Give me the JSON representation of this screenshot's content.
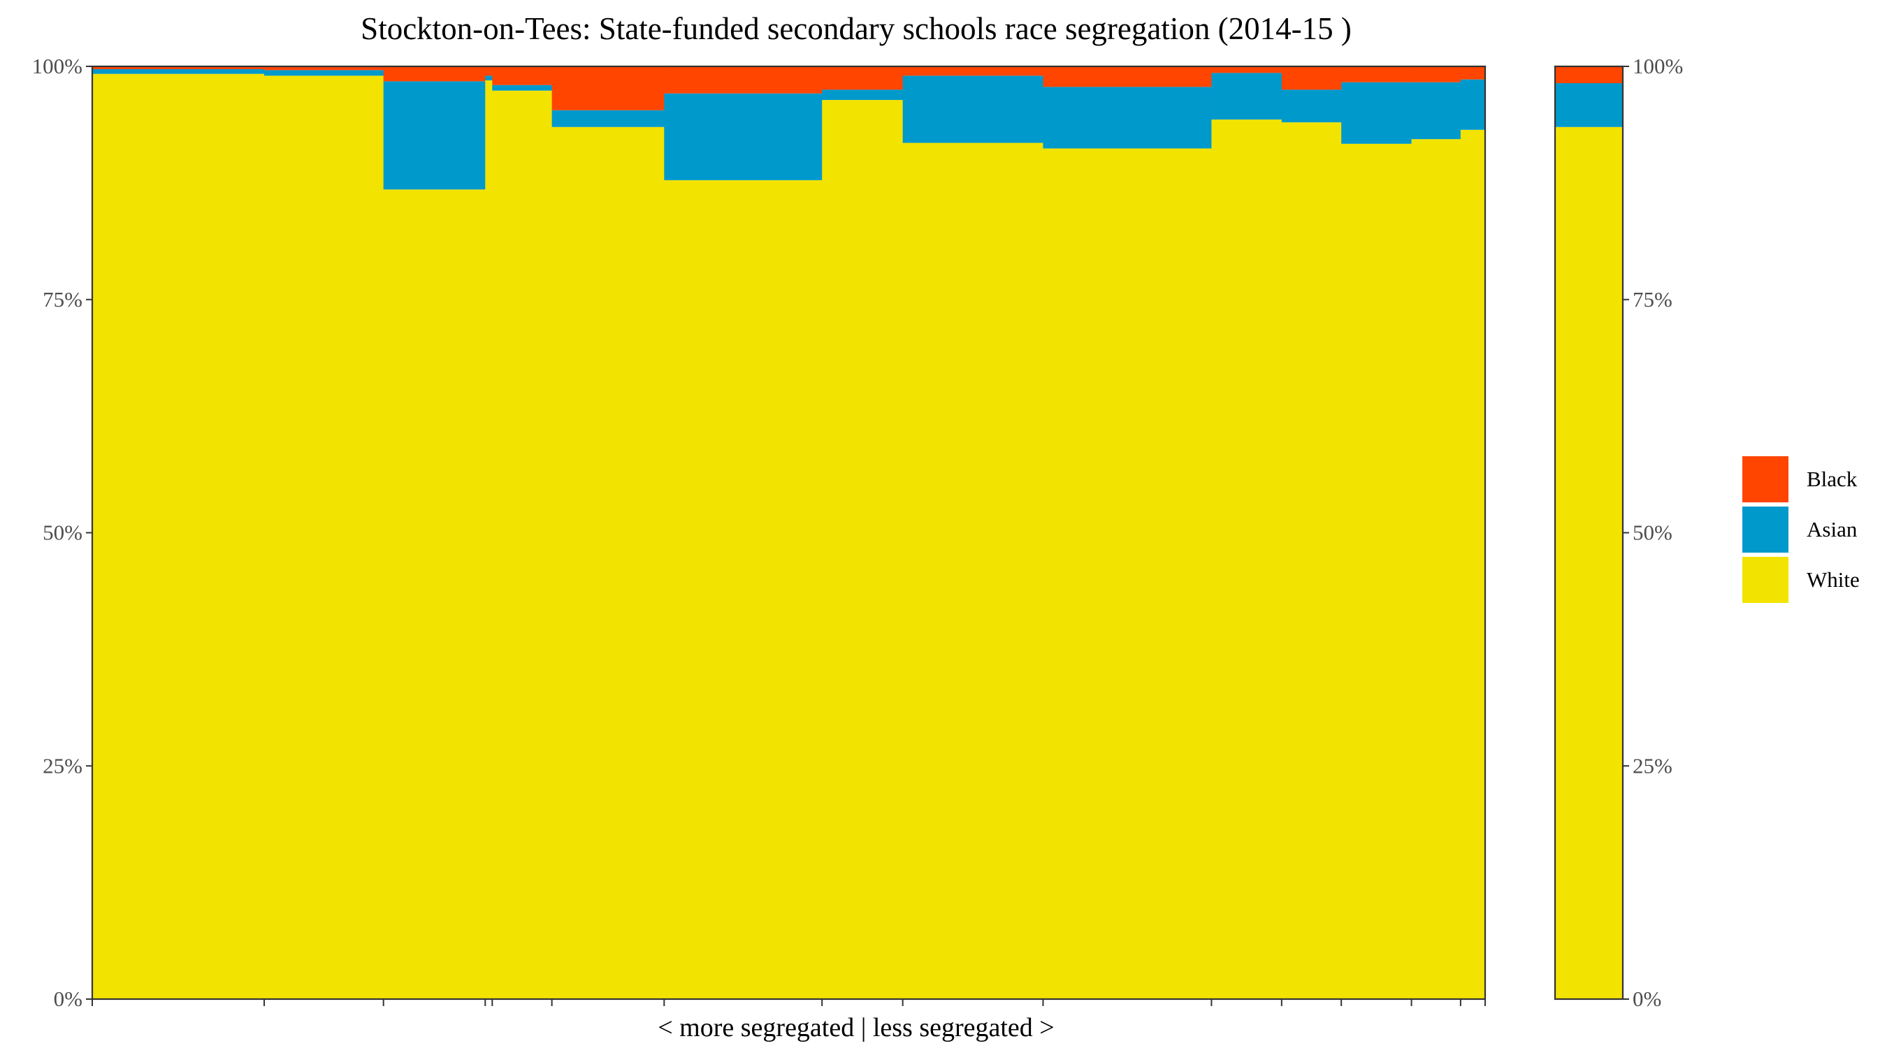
{
  "chart_data": {
    "type": "bar",
    "title": "Stockton-on-Tees: State-funded secondary schools race segregation (2014-15 )",
    "xlabel": "< more segregated | less segregated >",
    "ylabel": "",
    "ylim": [
      0,
      1
    ],
    "ytick_labels": [
      "0%",
      "25%",
      "50%",
      "75%",
      "100%"
    ],
    "ytick_values": [
      0,
      0.25,
      0.5,
      0.75,
      1
    ],
    "stack_order": [
      "White",
      "Asian",
      "Black"
    ],
    "legend": {
      "position": "right",
      "entries": [
        {
          "name": "Black",
          "color": "#FF4500"
        },
        {
          "name": "Asian",
          "color": "#0099CC"
        },
        {
          "name": "White",
          "color": "#F2E300"
        }
      ]
    },
    "bar_width_encodes": "school size (variable-width stacked bars)",
    "schools": [
      {
        "width": 2.45,
        "White": 0.992,
        "Asian": 0.005,
        "Black": 0.003
      },
      {
        "width": 1.7,
        "White": 0.99,
        "Asian": 0.006,
        "Black": 0.004
      },
      {
        "width": 1.45,
        "White": 0.868,
        "Asian": 0.116,
        "Black": 0.016
      },
      {
        "width": 0.1,
        "White": 0.985,
        "Asian": 0.005,
        "Black": 0.01
      },
      {
        "width": 0.85,
        "White": 0.974,
        "Asian": 0.006,
        "Black": 0.02
      },
      {
        "width": 1.6,
        "White": 0.935,
        "Asian": 0.018,
        "Black": 0.047
      },
      {
        "width": 2.25,
        "White": 0.878,
        "Asian": 0.093,
        "Black": 0.029
      },
      {
        "width": 1.15,
        "White": 0.964,
        "Asian": 0.011,
        "Black": 0.025
      },
      {
        "width": 2.0,
        "White": 0.918,
        "Asian": 0.072,
        "Black": 0.01
      },
      {
        "width": 2.4,
        "White": 0.912,
        "Asian": 0.066,
        "Black": 0.022
      },
      {
        "width": 1.0,
        "White": 0.943,
        "Asian": 0.05,
        "Black": 0.007
      },
      {
        "width": 0.85,
        "White": 0.94,
        "Asian": 0.035,
        "Black": 0.025
      },
      {
        "width": 1.0,
        "White": 0.917,
        "Asian": 0.066,
        "Black": 0.017
      },
      {
        "width": 0.7,
        "White": 0.922,
        "Asian": 0.061,
        "Black": 0.017
      },
      {
        "width": 0.35,
        "White": 0.932,
        "Asian": 0.054,
        "Black": 0.014
      }
    ],
    "overall": {
      "White": 0.935,
      "Asian": 0.047,
      "Black": 0.018
    }
  }
}
